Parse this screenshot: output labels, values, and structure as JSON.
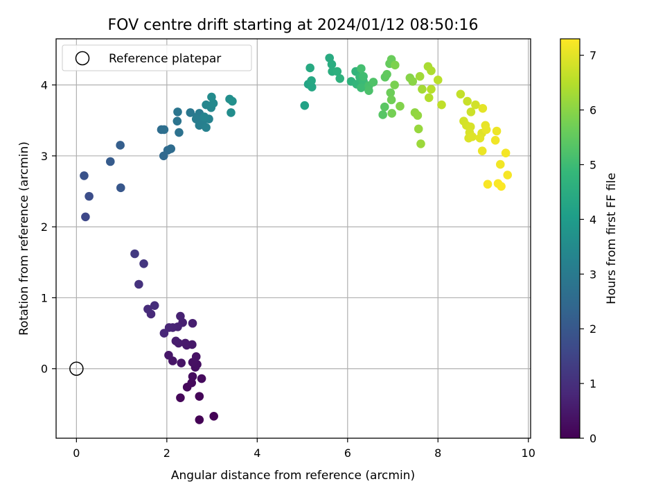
{
  "chart_data": {
    "type": "scatter",
    "title": "FOV centre drift starting at 2024/01/12 08:50:16",
    "xlabel": "Angular distance from reference (arcmin)",
    "ylabel": "Rotation from reference (arcmin)",
    "xlim": [
      -0.45,
      10.05
    ],
    "ylim": [
      -0.98,
      4.65
    ],
    "xticks": [
      0,
      2,
      4,
      6,
      8,
      10
    ],
    "yticks": [
      0,
      1,
      2,
      3,
      4
    ],
    "grid": true,
    "legend": {
      "placement": "top-left",
      "entries": [
        {
          "label": "Reference platepar",
          "marker": "open-circle"
        }
      ]
    },
    "reference_point": {
      "x": 0,
      "y": 0
    },
    "colorbar": {
      "label": "Hours from first FF file",
      "range": [
        0,
        7.3
      ],
      "ticks": [
        0,
        1,
        2,
        3,
        4,
        5,
        6,
        7
      ],
      "colormap": "viridis",
      "stops": [
        "#440154",
        "#482878",
        "#3e4989",
        "#31688e",
        "#26828e",
        "#1f9e89",
        "#35b779",
        "#6ece58",
        "#b5de2b",
        "#fde725"
      ]
    },
    "points": [
      {
        "x": 2.72,
        "y": -0.72,
        "t": 0.02
      },
      {
        "x": 3.04,
        "y": -0.67,
        "t": 0.05
      },
      {
        "x": 2.72,
        "y": -0.39,
        "t": 0.08
      },
      {
        "x": 2.3,
        "y": -0.41,
        "t": 0.12
      },
      {
        "x": 2.45,
        "y": -0.26,
        "t": 0.15
      },
      {
        "x": 2.55,
        "y": -0.2,
        "t": 0.18
      },
      {
        "x": 2.77,
        "y": -0.14,
        "t": 0.2
      },
      {
        "x": 2.57,
        "y": -0.11,
        "t": 0.23
      },
      {
        "x": 2.63,
        "y": 0.02,
        "t": 0.26
      },
      {
        "x": 2.67,
        "y": 0.06,
        "t": 0.29
      },
      {
        "x": 2.57,
        "y": 0.09,
        "t": 0.32
      },
      {
        "x": 2.65,
        "y": 0.17,
        "t": 0.35
      },
      {
        "x": 2.32,
        "y": 0.08,
        "t": 0.38
      },
      {
        "x": 2.13,
        "y": 0.11,
        "t": 0.41
      },
      {
        "x": 2.04,
        "y": 0.19,
        "t": 0.44
      },
      {
        "x": 2.56,
        "y": 0.34,
        "t": 0.47
      },
      {
        "x": 2.44,
        "y": 0.33,
        "t": 0.5
      },
      {
        "x": 2.41,
        "y": 0.36,
        "t": 0.53
      },
      {
        "x": 2.26,
        "y": 0.36,
        "t": 0.56
      },
      {
        "x": 2.2,
        "y": 0.39,
        "t": 0.59
      },
      {
        "x": 2.57,
        "y": 0.64,
        "t": 0.62
      },
      {
        "x": 2.35,
        "y": 0.65,
        "t": 0.65
      },
      {
        "x": 2.3,
        "y": 0.74,
        "t": 0.68
      },
      {
        "x": 2.24,
        "y": 0.59,
        "t": 0.71
      },
      {
        "x": 2.13,
        "y": 0.58,
        "t": 0.74
      },
      {
        "x": 2.05,
        "y": 0.58,
        "t": 0.77
      },
      {
        "x": 1.94,
        "y": 0.5,
        "t": 0.8
      },
      {
        "x": 1.65,
        "y": 0.77,
        "t": 0.85
      },
      {
        "x": 1.58,
        "y": 0.84,
        "t": 0.9
      },
      {
        "x": 1.73,
        "y": 0.89,
        "t": 0.95
      },
      {
        "x": 1.38,
        "y": 1.19,
        "t": 1.05
      },
      {
        "x": 1.49,
        "y": 1.48,
        "t": 1.15
      },
      {
        "x": 1.29,
        "y": 1.62,
        "t": 1.25
      },
      {
        "x": 0.2,
        "y": 2.14,
        "t": 1.6
      },
      {
        "x": 0.28,
        "y": 2.43,
        "t": 1.75
      },
      {
        "x": 0.17,
        "y": 2.72,
        "t": 1.85
      },
      {
        "x": 0.98,
        "y": 2.55,
        "t": 2.0
      },
      {
        "x": 0.75,
        "y": 2.92,
        "t": 2.1
      },
      {
        "x": 0.97,
        "y": 3.15,
        "t": 2.2
      },
      {
        "x": 1.93,
        "y": 3.0,
        "t": 2.45
      },
      {
        "x": 2.02,
        "y": 3.08,
        "t": 2.5
      },
      {
        "x": 2.09,
        "y": 3.1,
        "t": 2.55
      },
      {
        "x": 1.88,
        "y": 3.37,
        "t": 2.6
      },
      {
        "x": 1.94,
        "y": 3.37,
        "t": 2.65
      },
      {
        "x": 2.27,
        "y": 3.33,
        "t": 2.75
      },
      {
        "x": 2.23,
        "y": 3.49,
        "t": 2.8
      },
      {
        "x": 2.24,
        "y": 3.62,
        "t": 2.85
      },
      {
        "x": 2.52,
        "y": 3.61,
        "t": 2.9
      },
      {
        "x": 2.67,
        "y": 3.55,
        "t": 2.95
      },
      {
        "x": 2.72,
        "y": 3.6,
        "t": 3.0
      },
      {
        "x": 2.65,
        "y": 3.52,
        "t": 3.05
      },
      {
        "x": 2.72,
        "y": 3.43,
        "t": 3.1
      },
      {
        "x": 2.79,
        "y": 3.46,
        "t": 3.15
      },
      {
        "x": 2.87,
        "y": 3.4,
        "t": 3.2
      },
      {
        "x": 2.93,
        "y": 3.52,
        "t": 3.25
      },
      {
        "x": 2.83,
        "y": 3.55,
        "t": 3.3
      },
      {
        "x": 2.87,
        "y": 3.72,
        "t": 3.35
      },
      {
        "x": 2.98,
        "y": 3.68,
        "t": 3.4
      },
      {
        "x": 3.03,
        "y": 3.74,
        "t": 3.45
      },
      {
        "x": 2.99,
        "y": 3.83,
        "t": 3.5
      },
      {
        "x": 3.42,
        "y": 3.61,
        "t": 3.55
      },
      {
        "x": 3.39,
        "y": 3.8,
        "t": 3.6
      },
      {
        "x": 3.45,
        "y": 3.77,
        "t": 3.65
      },
      {
        "x": 5.05,
        "y": 3.71,
        "t": 4.2
      },
      {
        "x": 5.13,
        "y": 4.01,
        "t": 4.25
      },
      {
        "x": 5.21,
        "y": 3.97,
        "t": 4.3
      },
      {
        "x": 5.2,
        "y": 4.06,
        "t": 4.35
      },
      {
        "x": 5.17,
        "y": 4.24,
        "t": 4.4
      },
      {
        "x": 5.6,
        "y": 4.38,
        "t": 4.45
      },
      {
        "x": 5.65,
        "y": 4.29,
        "t": 4.5
      },
      {
        "x": 5.66,
        "y": 4.19,
        "t": 4.55
      },
      {
        "x": 5.77,
        "y": 4.19,
        "t": 4.6
      },
      {
        "x": 5.83,
        "y": 4.09,
        "t": 4.65
      },
      {
        "x": 6.08,
        "y": 4.05,
        "t": 4.7
      },
      {
        "x": 6.18,
        "y": 4.19,
        "t": 4.75
      },
      {
        "x": 6.2,
        "y": 4.01,
        "t": 4.8
      },
      {
        "x": 6.3,
        "y": 4.07,
        "t": 4.85
      },
      {
        "x": 6.27,
        "y": 4.11,
        "t": 4.9
      },
      {
        "x": 6.35,
        "y": 4.05,
        "t": 4.95
      },
      {
        "x": 6.3,
        "y": 3.96,
        "t": 5.0
      },
      {
        "x": 6.35,
        "y": 4.12,
        "t": 5.05
      },
      {
        "x": 6.3,
        "y": 4.23,
        "t": 5.1
      },
      {
        "x": 6.47,
        "y": 3.99,
        "t": 5.15
      },
      {
        "x": 6.47,
        "y": 3.92,
        "t": 5.2
      },
      {
        "x": 6.57,
        "y": 4.04,
        "t": 5.25
      },
      {
        "x": 6.78,
        "y": 3.58,
        "t": 5.35
      },
      {
        "x": 6.82,
        "y": 3.69,
        "t": 5.4
      },
      {
        "x": 6.83,
        "y": 4.11,
        "t": 5.45
      },
      {
        "x": 6.87,
        "y": 4.15,
        "t": 5.5
      },
      {
        "x": 6.93,
        "y": 4.3,
        "t": 5.55
      },
      {
        "x": 6.97,
        "y": 4.36,
        "t": 5.6
      },
      {
        "x": 6.95,
        "y": 3.89,
        "t": 5.65
      },
      {
        "x": 6.97,
        "y": 3.79,
        "t": 5.7
      },
      {
        "x": 6.98,
        "y": 3.6,
        "t": 5.75
      },
      {
        "x": 7.04,
        "y": 4.0,
        "t": 5.8
      },
      {
        "x": 7.05,
        "y": 4.28,
        "t": 5.85
      },
      {
        "x": 7.16,
        "y": 3.7,
        "t": 5.9
      },
      {
        "x": 7.38,
        "y": 4.1,
        "t": 5.95
      },
      {
        "x": 7.44,
        "y": 4.05,
        "t": 6.0
      },
      {
        "x": 7.49,
        "y": 3.61,
        "t": 6.05
      },
      {
        "x": 7.55,
        "y": 3.57,
        "t": 6.1
      },
      {
        "x": 7.57,
        "y": 3.38,
        "t": 6.15
      },
      {
        "x": 7.62,
        "y": 3.17,
        "t": 6.2
      },
      {
        "x": 7.6,
        "y": 4.12,
        "t": 6.25
      },
      {
        "x": 7.65,
        "y": 3.94,
        "t": 6.3
      },
      {
        "x": 7.78,
        "y": 4.26,
        "t": 6.35
      },
      {
        "x": 7.85,
        "y": 4.2,
        "t": 6.4
      },
      {
        "x": 7.8,
        "y": 3.82,
        "t": 6.45
      },
      {
        "x": 7.85,
        "y": 3.94,
        "t": 6.5
      },
      {
        "x": 8.0,
        "y": 4.07,
        "t": 6.55
      },
      {
        "x": 8.08,
        "y": 3.72,
        "t": 6.6
      },
      {
        "x": 8.5,
        "y": 3.87,
        "t": 6.65
      },
      {
        "x": 8.65,
        "y": 3.77,
        "t": 6.7
      },
      {
        "x": 8.73,
        "y": 3.62,
        "t": 6.75
      },
      {
        "x": 8.83,
        "y": 3.72,
        "t": 6.8
      },
      {
        "x": 8.57,
        "y": 3.49,
        "t": 6.82
      },
      {
        "x": 8.63,
        "y": 3.43,
        "t": 6.85
      },
      {
        "x": 8.72,
        "y": 3.41,
        "t": 6.87
      },
      {
        "x": 8.7,
        "y": 3.33,
        "t": 6.9
      },
      {
        "x": 8.68,
        "y": 3.25,
        "t": 6.92
      },
      {
        "x": 8.76,
        "y": 3.27,
        "t": 6.95
      },
      {
        "x": 8.97,
        "y": 3.32,
        "t": 6.97
      },
      {
        "x": 8.93,
        "y": 3.25,
        "t": 7.0
      },
      {
        "x": 8.99,
        "y": 3.67,
        "t": 7.02
      },
      {
        "x": 9.05,
        "y": 3.43,
        "t": 7.05
      },
      {
        "x": 9.07,
        "y": 3.37,
        "t": 7.08
      },
      {
        "x": 8.98,
        "y": 3.07,
        "t": 7.1
      },
      {
        "x": 9.3,
        "y": 3.35,
        "t": 7.12
      },
      {
        "x": 9.27,
        "y": 3.22,
        "t": 7.15
      },
      {
        "x": 9.38,
        "y": 2.88,
        "t": 7.17
      },
      {
        "x": 9.5,
        "y": 3.04,
        "t": 7.2
      },
      {
        "x": 9.54,
        "y": 2.73,
        "t": 7.22
      },
      {
        "x": 9.1,
        "y": 2.6,
        "t": 7.24
      },
      {
        "x": 9.33,
        "y": 2.61,
        "t": 7.26
      },
      {
        "x": 9.4,
        "y": 2.57,
        "t": 7.28
      }
    ]
  }
}
